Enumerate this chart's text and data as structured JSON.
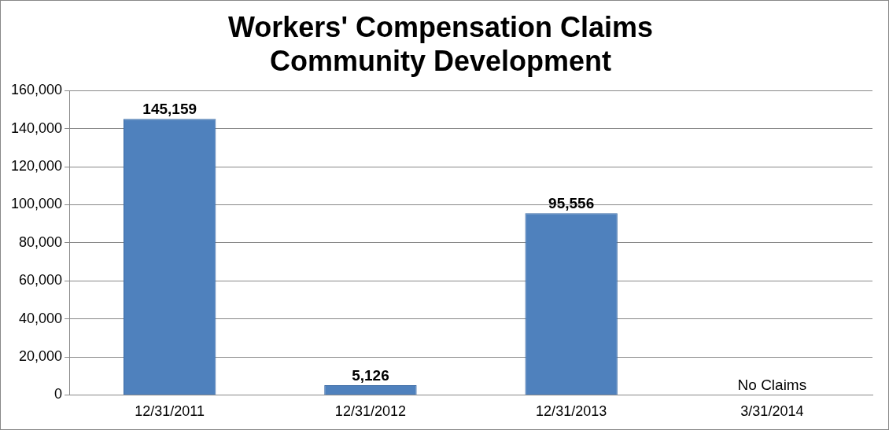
{
  "chart_data": {
    "type": "bar",
    "title": "Workers' Compensation Claims\nCommunity Development",
    "categories": [
      "12/31/2011",
      "12/31/2012",
      "12/31/2013",
      "3/31/2014"
    ],
    "values": [
      145159,
      5126,
      95556,
      0
    ],
    "value_labels": [
      "145,159",
      "5,126",
      "95,556",
      "No Claims"
    ],
    "color": "#4f81bd",
    "ylim": [
      0,
      160000
    ],
    "yticks": [
      {
        "value": 0,
        "label": "0"
      },
      {
        "value": 20000,
        "label": "20,000"
      },
      {
        "value": 40000,
        "label": "40,000"
      },
      {
        "value": 60000,
        "label": "60,000"
      },
      {
        "value": 80000,
        "label": "80,000"
      },
      {
        "value": 100000,
        "label": "100,000"
      },
      {
        "value": 120000,
        "label": "120,000"
      },
      {
        "value": 140000,
        "label": "140,000"
      },
      {
        "value": 160000,
        "label": "160,000"
      }
    ],
    "grid": "y",
    "legend": false
  }
}
